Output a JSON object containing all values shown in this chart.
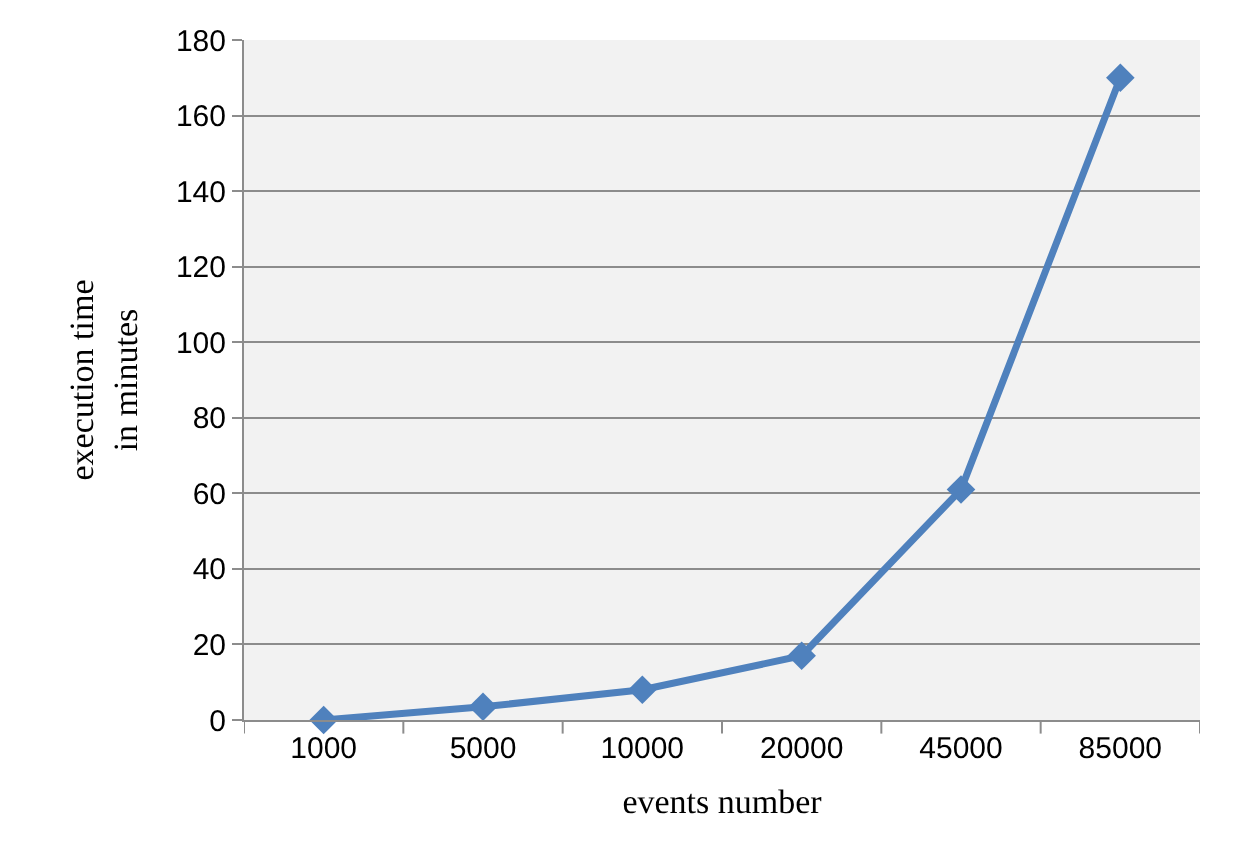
{
  "chart_data": {
    "type": "line",
    "xlabel": "events number",
    "ylabel": "execution time\nin minutes",
    "categories": [
      "1000",
      "5000",
      "10000",
      "20000",
      "45000",
      "85000"
    ],
    "series": [
      {
        "color": "#4f81bd",
        "values": [
          0,
          3.5,
          8,
          17,
          61,
          170
        ]
      }
    ],
    "ylim": [
      0,
      180
    ],
    "yticks": [
      0,
      20,
      40,
      60,
      80,
      100,
      120,
      140,
      160,
      180
    ],
    "grid": "y",
    "marker": "diamond",
    "line_style": "solid"
  }
}
